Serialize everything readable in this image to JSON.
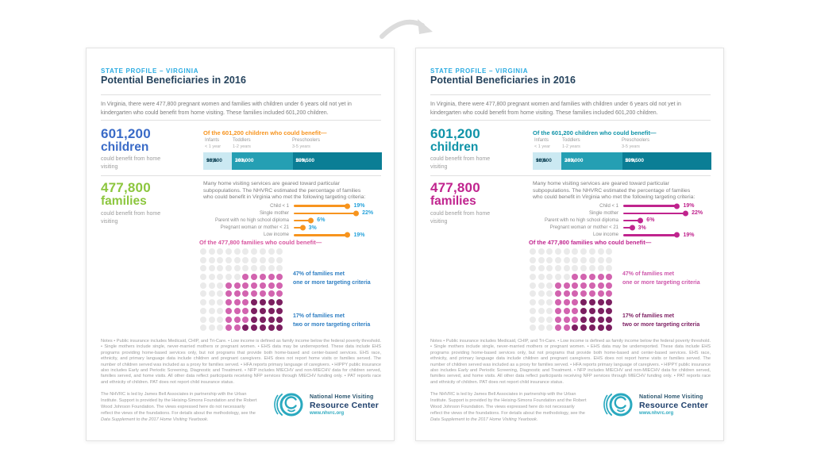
{
  "decor": {
    "arrow_icon": "curved-right-arrow",
    "arrow_color": "#DCDCDC"
  },
  "pages": [
    {
      "id": "original",
      "colors": {
        "c-children": "#3A6BC7",
        "c-children-heading": "#F7941E",
        "c-families": "#8CC63E",
        "c-lolli": "#F7941E",
        "c-lolli-pct": "#29A4DC",
        "c-matrix-heading": "#D8549F",
        "c-label-one": "#2F7FC3",
        "c-label-two": "#2F7FC3"
      }
    },
    {
      "id": "revised",
      "colors": {
        "c-children": "#0F93A8",
        "c-children-heading": "#0F93A8",
        "c-families": "#C0248E",
        "c-lolli": "#C0248E",
        "c-lolli-pct": "#C0248E",
        "c-matrix-heading": "#C0248E",
        "c-label-one": "#CE56AB",
        "c-label-two": "#7E2063"
      }
    }
  ],
  "content": {
    "eyebrow": "STATE PROFILE – VIRGINIA",
    "title": "Potential Beneficiaries in 2016",
    "intro": "In Virginia, there were 477,800 pregnant women and families with children under 6 years old not yet in kindergarten who could benefit from home visiting. These families included 601,200 children.",
    "children": {
      "stat_number": "601,200",
      "stat_label": "children",
      "stat_sub": "could benefit from home visiting",
      "heading": "Of the 601,200 children who could benefit—",
      "groups": [
        {
          "label": "Infants",
          "sublabel": "< 1 year",
          "value": "98,800",
          "pct_label": "16%",
          "pct_num": 16
        },
        {
          "label": "Toddlers",
          "sublabel": "1-2 years",
          "value": "203,000",
          "pct_label": "34%",
          "pct_num": 34
        },
        {
          "label": "Preschoolers",
          "sublabel": "3-5 years",
          "value": "299,500",
          "pct_label": "50%",
          "pct_num": 50
        }
      ]
    },
    "families": {
      "stat_number": "477,800",
      "stat_label": "families",
      "stat_sub": "could benefit from home visiting",
      "paragraph": "Many home visiting services are geared toward particular subpopulations. The NHVRC estimated the percentage of families who could benefit in Virginia who met the following targeting criteria:",
      "criteria": [
        {
          "label": "Child < 1",
          "pct_label": "19%",
          "pct": 19
        },
        {
          "label": "Single mother",
          "pct_label": "22%",
          "pct": 22
        },
        {
          "label": "Parent with no high school diploma",
          "pct_label": "6%",
          "pct": 6
        },
        {
          "label": "Pregnant woman or mother < 21",
          "pct_label": "3%",
          "pct": 3
        },
        {
          "label": "Low income",
          "pct_label": "19%",
          "pct": 19
        }
      ]
    },
    "dot_matrix": {
      "heading": "Of the 477,800 families who could benefit—",
      "label_one_line1": "47% of families met",
      "label_one_line2": "one or more targeting criteria",
      "label_two_line1": "17% of families met",
      "label_two_line2": "two or more targeting criteria",
      "grid": [
        "gggggggggg",
        "gggggggggg",
        "gggggggggg",
        "gggggppppp",
        "gggppppppp",
        "gggppppppp",
        "gggpppdddd",
        "gggpppdddd",
        "gggpppdddd",
        "gggppddddd"
      ]
    },
    "notes": "Notes • Public insurance includes Medicaid, CHIP, and Tri-Care. • Low income is defined as family income below the federal poverty threshold. • Single mothers include single, never-married mothers or pregnant women. • EHS data may be underreported. These data include EHS programs providing home-based services only, but not programs that provide both home-based and center-based services. EHS race, ethnicity, and primary language data include children and pregnant caregivers. EHS does not report home visits or families served. The number of children served was included as a proxy for families served. • HFA reports primary language of caregivers. • HIPPY public insurance also includes Early and Periodic Screening, Diagnostic and Treatment. • NFP includes MIECHV and non-MIECHV data for children served, families served, and home visits. All other data reflect participants receiving NFP services through MIECHV funding only. • PAT reports race and ethnicity of children. PAT does not report child insurance status.",
    "footer_text": "The NHVRC is led by James Bell Associates in partnership with the Urban Institute. Support is provided by the Heising-Simons Foundation and the Robert Wood Johnson Foundation. The views expressed here do not necessarily reflect the views of the foundations. For details about the methodology, see the ",
    "footer_italic": "Data Supplement to the 2017 Home Visiting Yearbook.",
    "logo": {
      "line1": "National Home Visiting",
      "line2": "Resource Center",
      "url": "www.nhvrc.org"
    }
  },
  "chart_data": [
    {
      "type": "bar",
      "title": "Of the 601,200 children who could benefit—",
      "categories": [
        "Infants < 1 year",
        "Toddlers 1-2 years",
        "Preschoolers 3-5 years"
      ],
      "values": [
        98800,
        203000,
        299500
      ],
      "percents": [
        16,
        34,
        50
      ],
      "layout": "horizontal-stacked-100pct"
    },
    {
      "type": "bar",
      "title": "Percentage of families meeting targeting criteria",
      "categories": [
        "Child < 1",
        "Single mother",
        "Parent with no high school diploma",
        "Pregnant woman or mother < 21",
        "Low income"
      ],
      "values": [
        19,
        22,
        6,
        3,
        19
      ],
      "unit": "%",
      "layout": "horizontal-lollipop",
      "xlim": [
        0,
        22
      ]
    },
    {
      "type": "heatmap",
      "title": "Of the 477,800 families who could benefit—",
      "categories": [
        "met one or more targeting criteria",
        "met two or more targeting criteria",
        "did not meet criteria"
      ],
      "values": [
        47,
        17,
        53
      ],
      "unit": "% (100-dot waffle, 17 is subset of 47)",
      "layout": "10x10-waffle"
    }
  ]
}
